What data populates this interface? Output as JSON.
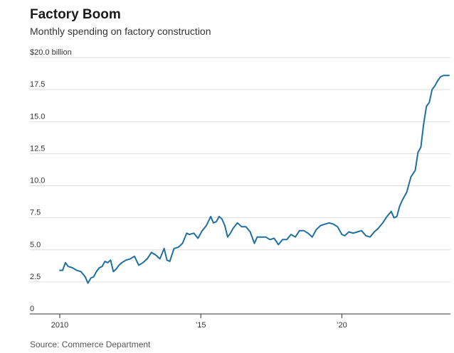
{
  "header": {
    "title": "Factory Boom",
    "subtitle": "Monthly spending on factory construction"
  },
  "footer": {
    "source": "Source: Commerce Department"
  },
  "chart_data": {
    "type": "line",
    "title": "Factory Boom",
    "subtitle": "Monthly spending on factory construction",
    "ylabel": "",
    "xlabel": "",
    "unit": "billion",
    "ylim": [
      0,
      20
    ],
    "xlim": [
      2010.0,
      2023.85
    ],
    "grid": true,
    "y_ticks": [
      {
        "value": 0,
        "label": "0"
      },
      {
        "value": 2.5,
        "label": "2.5"
      },
      {
        "value": 5,
        "label": "5.0"
      },
      {
        "value": 7.5,
        "label": "7.5"
      },
      {
        "value": 10,
        "label": "10.0"
      },
      {
        "value": 12.5,
        "label": "12.5"
      },
      {
        "value": 15,
        "label": "15.0"
      },
      {
        "value": 17.5,
        "label": "17.5"
      },
      {
        "value": 20,
        "label": "$20.0 billion"
      }
    ],
    "x_ticks": [
      {
        "value": 2010,
        "label": "2010"
      },
      {
        "value": 2015,
        "label": "’15"
      },
      {
        "value": 2020,
        "label": "’20"
      }
    ],
    "colors": {
      "line": "#1f6f9f",
      "grid": "#dddddd",
      "axis": "#333333"
    },
    "series": [
      {
        "x": [
          2010.0,
          2010.1,
          2010.2,
          2010.3,
          2010.45,
          2010.6,
          2010.75,
          2010.9,
          2011.0,
          2011.1,
          2011.2,
          2011.3,
          2011.4,
          2011.5,
          2011.6,
          2011.7,
          2011.8,
          2011.9,
          2012.0,
          2012.1,
          2012.2,
          2012.35,
          2012.5,
          2012.65,
          2012.8,
          2012.95,
          2013.1,
          2013.25,
          2013.4,
          2013.55,
          2013.7,
          2013.8,
          2013.9,
          2014.05,
          2014.2,
          2014.35,
          2014.5,
          2014.6,
          2014.75,
          2014.9,
          2015.05,
          2015.2,
          2015.35,
          2015.45,
          2015.55,
          2015.65,
          2015.75,
          2015.85,
          2015.95,
          2016.05,
          2016.15,
          2016.3,
          2016.45,
          2016.6,
          2016.75,
          2016.9,
          2017.0,
          2017.15,
          2017.3,
          2017.45,
          2017.6,
          2017.75,
          2017.9,
          2018.05,
          2018.2,
          2018.35,
          2018.5,
          2018.65,
          2018.8,
          2018.95,
          2019.1,
          2019.25,
          2019.4,
          2019.55,
          2019.7,
          2019.85,
          2020.0,
          2020.1,
          2020.25,
          2020.4,
          2020.55,
          2020.7,
          2020.85,
          2021.0,
          2021.15,
          2021.3,
          2021.45,
          2021.6,
          2021.75,
          2021.85,
          2021.95,
          2022.05,
          2022.15,
          2022.3,
          2022.45,
          2022.6,
          2022.7,
          2022.8,
          2022.9,
          2023.0,
          2023.1,
          2023.2,
          2023.3,
          2023.4,
          2023.5,
          2023.6,
          2023.7,
          2023.8
        ],
        "values": [
          3.4,
          3.4,
          4.0,
          3.7,
          3.6,
          3.4,
          3.3,
          2.9,
          2.4,
          2.8,
          2.9,
          3.3,
          3.6,
          3.7,
          4.1,
          4.0,
          4.2,
          3.3,
          3.5,
          3.8,
          4.0,
          4.2,
          4.3,
          4.5,
          3.8,
          4.0,
          4.3,
          4.8,
          4.6,
          4.3,
          5.1,
          4.2,
          4.1,
          5.1,
          5.2,
          5.5,
          6.3,
          6.2,
          6.3,
          5.9,
          6.5,
          6.9,
          7.6,
          7.1,
          7.2,
          7.6,
          7.4,
          6.9,
          6.0,
          6.3,
          6.7,
          7.1,
          6.8,
          6.8,
          6.4,
          5.5,
          6.0,
          6.0,
          6.0,
          5.8,
          5.9,
          5.4,
          5.8,
          5.8,
          6.2,
          6.0,
          6.5,
          6.5,
          6.3,
          6.0,
          6.6,
          6.9,
          7.0,
          7.1,
          7.0,
          6.8,
          6.2,
          6.1,
          6.4,
          6.3,
          6.4,
          6.5,
          6.1,
          6.0,
          6.4,
          6.7,
          7.1,
          7.6,
          8.0,
          7.5,
          7.6,
          8.4,
          8.9,
          9.5,
          10.7,
          11.2,
          12.6,
          13.0,
          14.8,
          16.2,
          16.5,
          17.5,
          17.8,
          18.2,
          18.5,
          18.6,
          18.6,
          18.6
        ]
      }
    ]
  }
}
